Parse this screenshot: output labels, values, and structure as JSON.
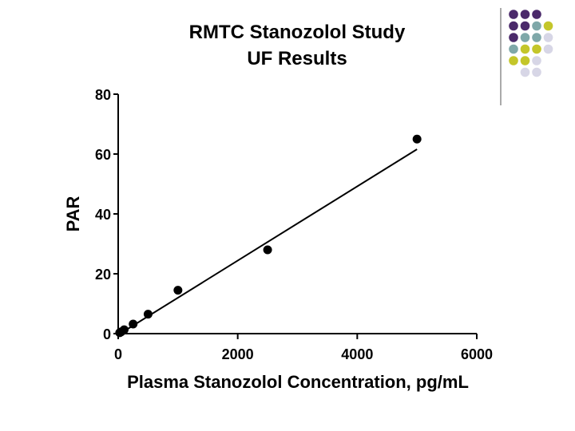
{
  "theme": {
    "dot_colors": [
      "#4b2a6b",
      "#7fa8a9",
      "#c4c62a",
      "#d7d6e6"
    ],
    "divider_color": "#555555",
    "ink": "#000000"
  },
  "chart_data": {
    "type": "scatter",
    "title": [
      "RMTC Stanozolol Study",
      "UF Results"
    ],
    "xlabel": "Plasma Stanozolol Concentration, pg/mL",
    "ylabel": "PAR",
    "xlim": [
      0,
      6000
    ],
    "ylim": [
      0,
      80
    ],
    "x_ticks": [
      0,
      2000,
      4000,
      6000
    ],
    "y_ticks": [
      0,
      20,
      40,
      60,
      80
    ],
    "x_tick_labels": [
      "0",
      "2000",
      "4000",
      "6000"
    ],
    "y_tick_labels": [
      "0",
      "20",
      "40",
      "60",
      "80"
    ],
    "series": [
      {
        "name": "UF Results",
        "points": [
          {
            "x": 25,
            "y": 0.3
          },
          {
            "x": 50,
            "y": 0.6
          },
          {
            "x": 100,
            "y": 1.3
          },
          {
            "x": 250,
            "y": 3.2
          },
          {
            "x": 500,
            "y": 6.5
          },
          {
            "x": 1000,
            "y": 14.5
          },
          {
            "x": 2500,
            "y": 28.0
          },
          {
            "x": 5000,
            "y": 65.0
          }
        ]
      }
    ],
    "fit_line": {
      "x": [
        0,
        5000
      ],
      "y": [
        -0.4,
        61.6
      ]
    }
  }
}
